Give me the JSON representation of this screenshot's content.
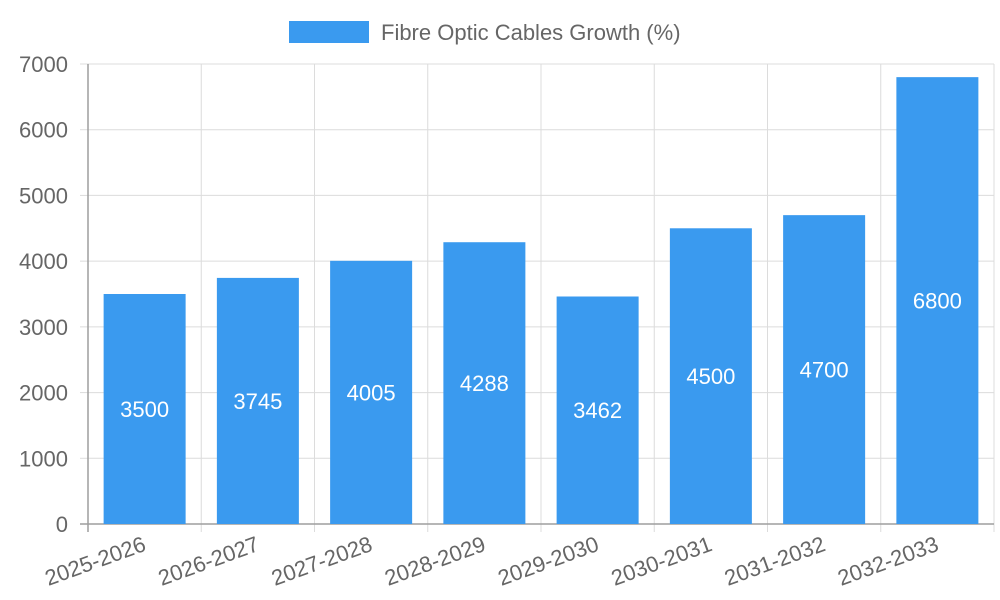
{
  "chart_data": {
    "type": "bar",
    "title": "",
    "xlabel": "",
    "ylabel": "",
    "ylim": [
      0,
      7000
    ],
    "yticks": [
      0,
      1000,
      2000,
      3000,
      4000,
      5000,
      6000,
      7000
    ],
    "categories": [
      "2025-2026",
      "2026-2027",
      "2027-2028",
      "2028-2029",
      "2029-2030",
      "2030-2031",
      "2031-2032",
      "2032-2033"
    ],
    "series": [
      {
        "name": "Fibre Optic Cables Growth (%)",
        "color": "#3a9aef",
        "values": [
          3500,
          3745,
          4005,
          4288,
          3462,
          4500,
          4700,
          6800
        ]
      }
    ],
    "legend": {
      "position": "top-center",
      "label": "Fibre Optic Cables Growth (%)"
    },
    "grid": true
  }
}
